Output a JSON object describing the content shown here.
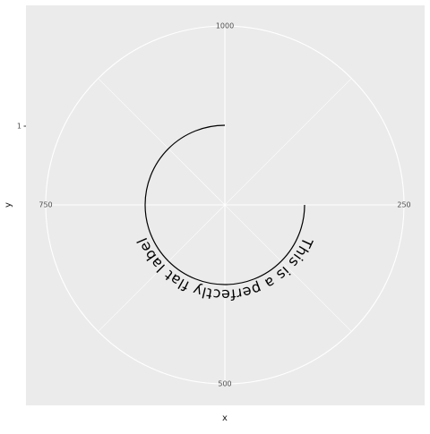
{
  "chart_data": {
    "type": "line",
    "coord": "polar",
    "xlabel": "x",
    "ylabel": "y",
    "theta_ticks": [
      {
        "value": 500,
        "label": "500"
      },
      {
        "value": 750,
        "label": "750"
      },
      {
        "value": 1000,
        "label": "1000"
      },
      {
        "value": 250,
        "label": "250"
      }
    ],
    "theta_range": [
      0,
      1000
    ],
    "y_ticks": [
      {
        "value": 1,
        "label": "1"
      }
    ],
    "series": [
      {
        "x": [
          250,
          1000,
          750
        ],
        "y": [
          1,
          1,
          1
        ],
        "color": "#000000"
      }
    ],
    "annotation": {
      "text": "This is a perfectly flat label",
      "x": 500,
      "y": 1
    },
    "grid": true,
    "colors": {
      "panel_background": "#ebebeb",
      "grid": "#ffffff",
      "line": "#000000"
    }
  }
}
